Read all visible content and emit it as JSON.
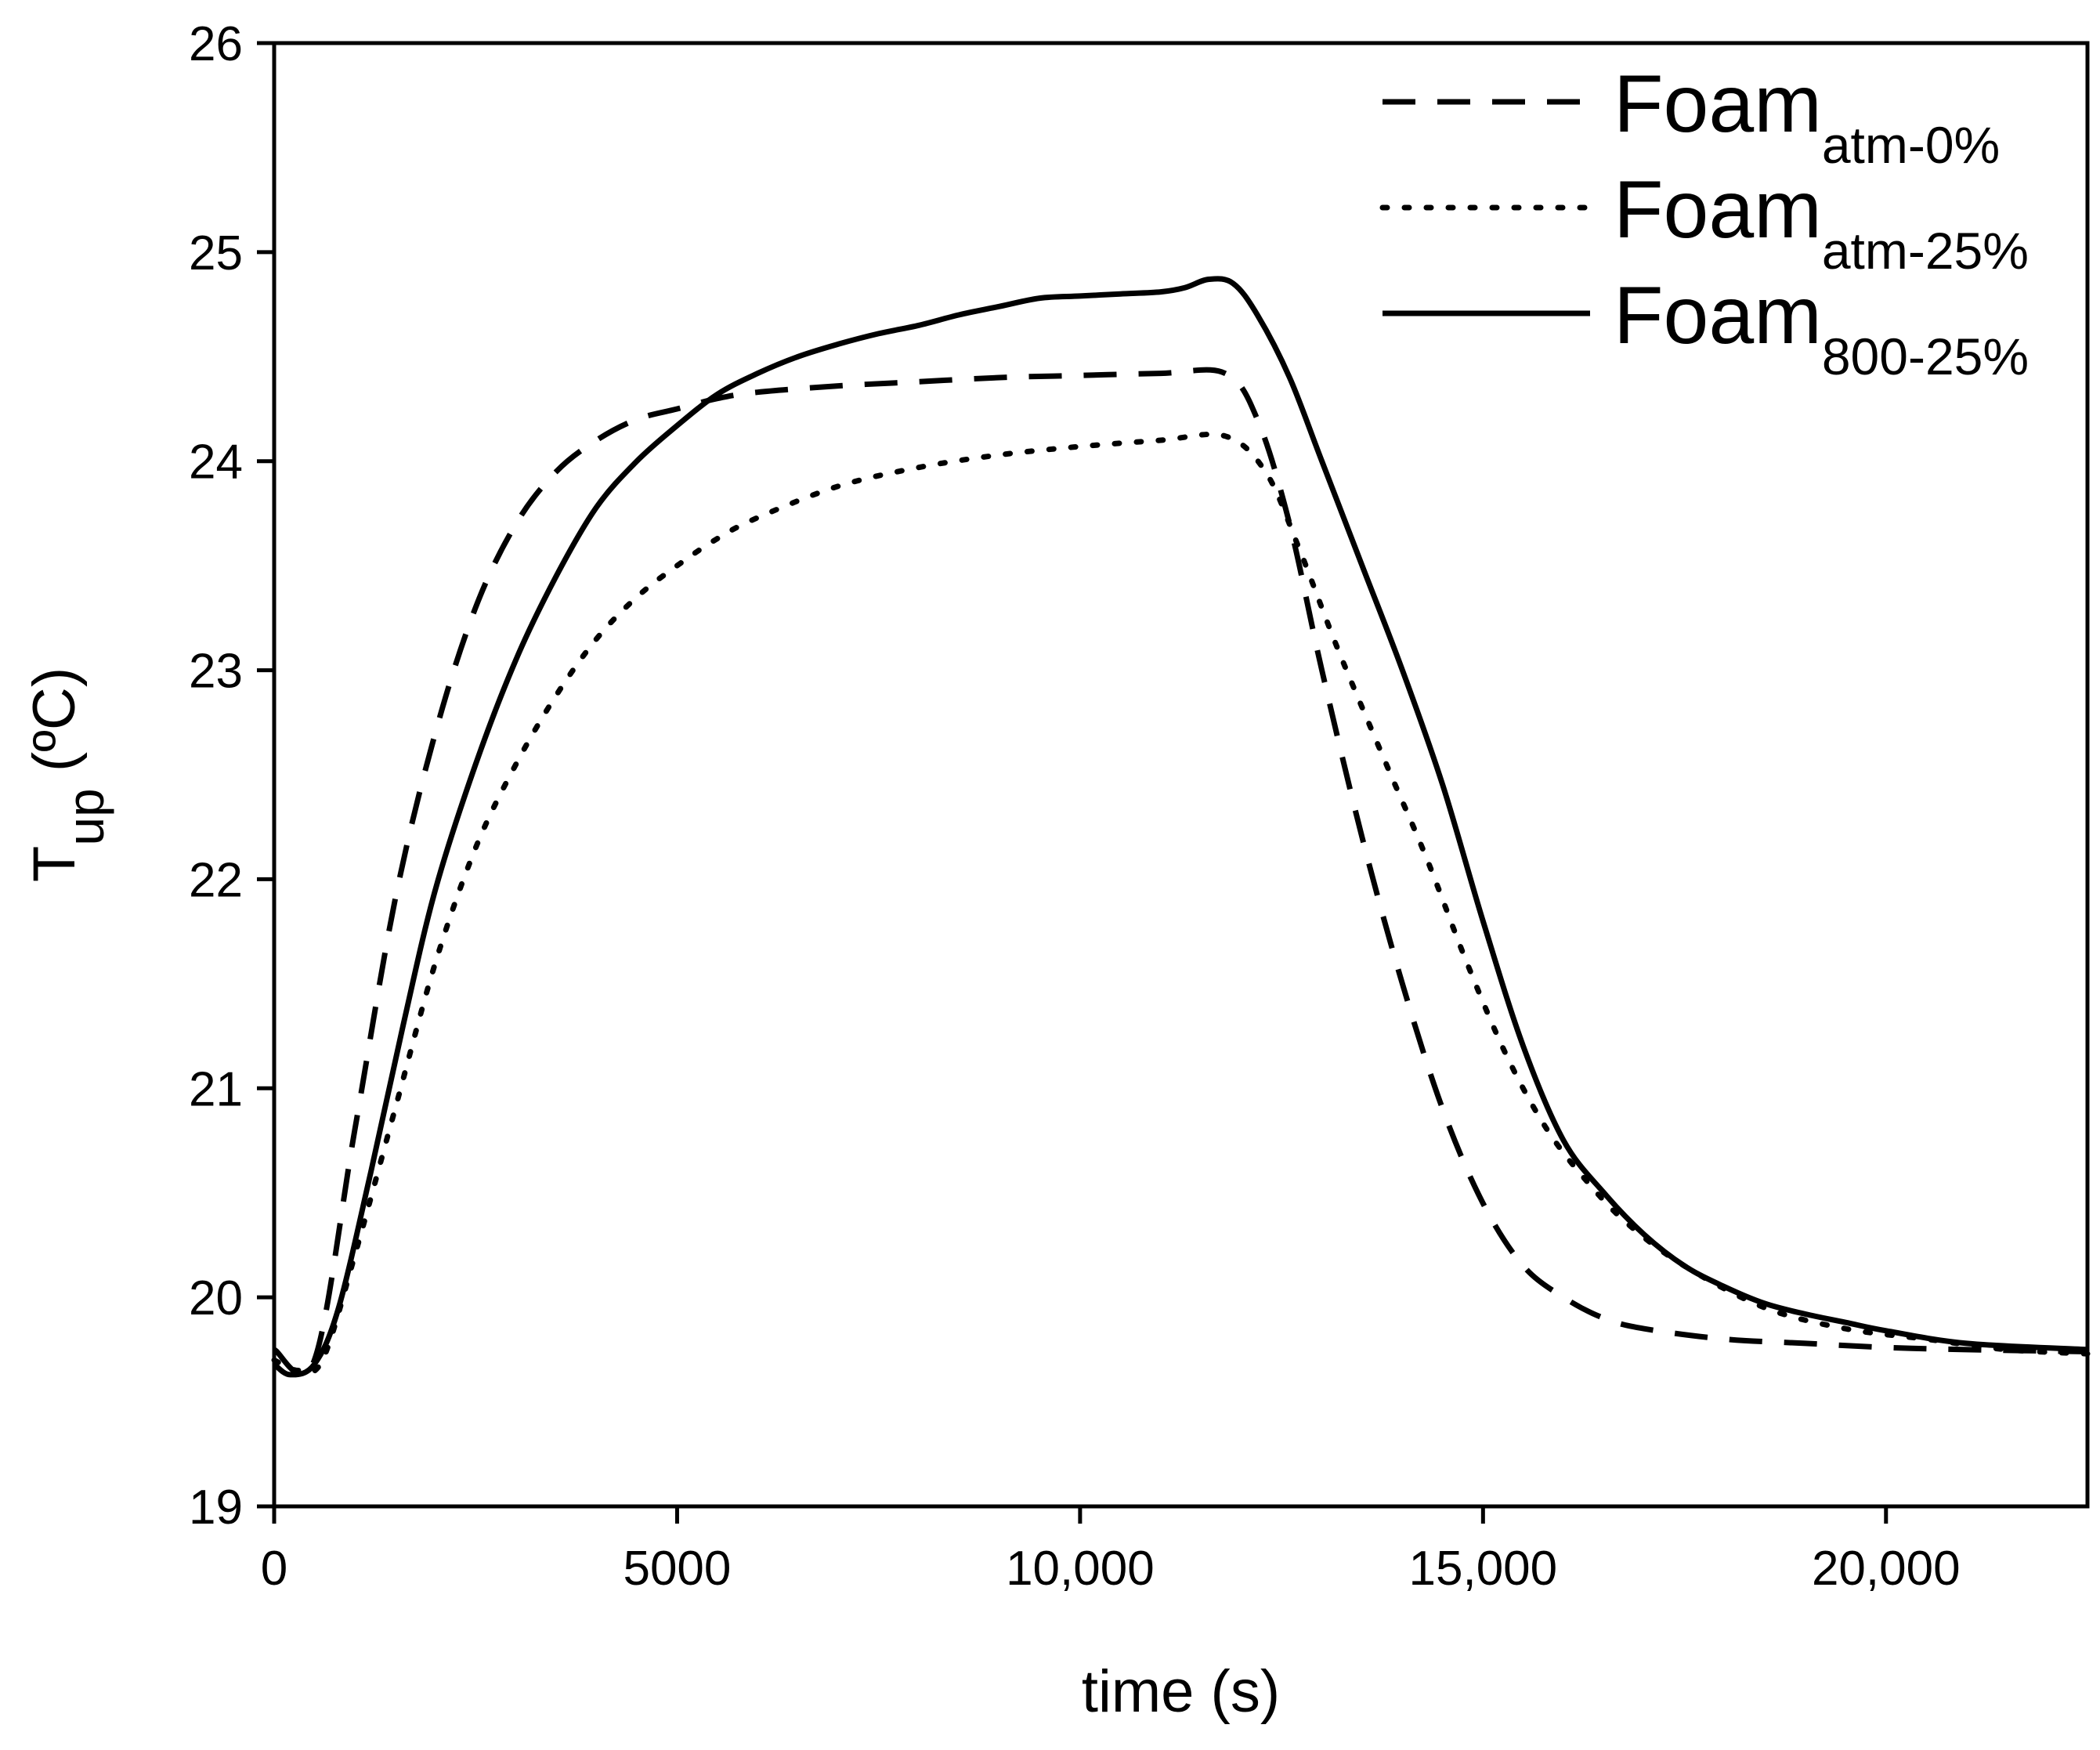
{
  "chart_data": {
    "type": "line",
    "xlabel": "time (s)",
    "ylabel": {
      "main": "T",
      "sub": "up",
      "rest": " (ºC)"
    },
    "xlim": [
      0,
      22500
    ],
    "ylim": [
      19,
      26
    ],
    "xticks": [
      0,
      5000,
      10000,
      15000,
      20000
    ],
    "xtick_labels": [
      "0",
      "5000",
      "10,000",
      "15,000",
      "20,000"
    ],
    "yticks": [
      19,
      20,
      21,
      22,
      23,
      24,
      25,
      26
    ],
    "ytick_labels": [
      "19",
      "20",
      "21",
      "22",
      "23",
      "24",
      "25",
      "26"
    ],
    "legend_position": "top-right",
    "series": [
      {
        "name": "Foam atm-0%",
        "label_main": "Foam",
        "label_sub": "atm-0%",
        "style": "dashed",
        "color": "#000000",
        "x": [
          0,
          500,
          1000,
          1500,
          2000,
          2500,
          3000,
          3500,
          4000,
          4500,
          5000,
          5500,
          6000,
          7000,
          8000,
          9000,
          10000,
          11000,
          11800,
          12200,
          12600,
          13000,
          13500,
          14000,
          14500,
          15000,
          15500,
          16000,
          16500,
          17000,
          18000,
          19000,
          20000,
          21000,
          22500
        ],
        "y": [
          19.75,
          19.7,
          20.8,
          21.9,
          22.7,
          23.3,
          23.7,
          23.95,
          24.1,
          24.2,
          24.25,
          24.3,
          24.33,
          24.36,
          24.38,
          24.4,
          24.41,
          24.42,
          24.42,
          24.2,
          23.7,
          23.0,
          22.2,
          21.5,
          20.9,
          20.45,
          20.15,
          20.0,
          19.9,
          19.85,
          19.8,
          19.78,
          19.76,
          19.75,
          19.74
        ]
      },
      {
        "name": "Foam atm-25%",
        "label_main": "Foam",
        "label_sub": "atm-25%",
        "style": "dotted",
        "color": "#000000",
        "x": [
          0,
          300,
          600,
          1000,
          1500,
          2000,
          2500,
          3000,
          3500,
          4000,
          4500,
          5000,
          5500,
          6000,
          7000,
          8000,
          9000,
          10000,
          11000,
          11800,
          12300,
          12700,
          13200,
          13800,
          14300,
          14800,
          15300,
          15800,
          16300,
          16800,
          17500,
          18500,
          19500,
          20500,
          21500,
          22500
        ],
        "y": [
          19.7,
          19.65,
          19.7,
          20.2,
          20.9,
          21.6,
          22.15,
          22.55,
          22.88,
          23.15,
          23.35,
          23.5,
          23.63,
          23.73,
          23.88,
          23.97,
          24.03,
          24.07,
          24.1,
          24.12,
          23.95,
          23.6,
          23.1,
          22.55,
          22.1,
          21.6,
          21.15,
          20.8,
          20.55,
          20.35,
          20.15,
          19.95,
          19.85,
          19.8,
          19.75,
          19.73
        ]
      },
      {
        "name": "Foam 800-25%",
        "label_main": "Foam",
        "label_sub": "800-25%",
        "style": "solid",
        "color": "#000000",
        "x": [
          0,
          200,
          500,
          800,
          1200,
          1600,
          2000,
          2500,
          3000,
          3500,
          4000,
          4500,
          5000,
          5500,
          6000,
          6500,
          7000,
          7500,
          8000,
          8500,
          9000,
          9500,
          10000,
          10500,
          11000,
          11300,
          11600,
          11900,
          12200,
          12600,
          13000,
          13500,
          14000,
          14500,
          15000,
          15500,
          16000,
          16500,
          17000,
          17500,
          18000,
          18500,
          19000,
          19500,
          20000,
          21000,
          22500
        ],
        "y": [
          19.68,
          19.63,
          19.68,
          19.95,
          20.6,
          21.3,
          21.95,
          22.55,
          23.05,
          23.45,
          23.78,
          24.0,
          24.17,
          24.32,
          24.42,
          24.5,
          24.56,
          24.61,
          24.65,
          24.7,
          24.74,
          24.78,
          24.79,
          24.8,
          24.81,
          24.83,
          24.87,
          24.85,
          24.7,
          24.4,
          24.0,
          23.5,
          23.0,
          22.45,
          21.8,
          21.2,
          20.75,
          20.5,
          20.3,
          20.15,
          20.05,
          19.97,
          19.92,
          19.88,
          19.84,
          19.78,
          19.75
        ]
      }
    ]
  }
}
